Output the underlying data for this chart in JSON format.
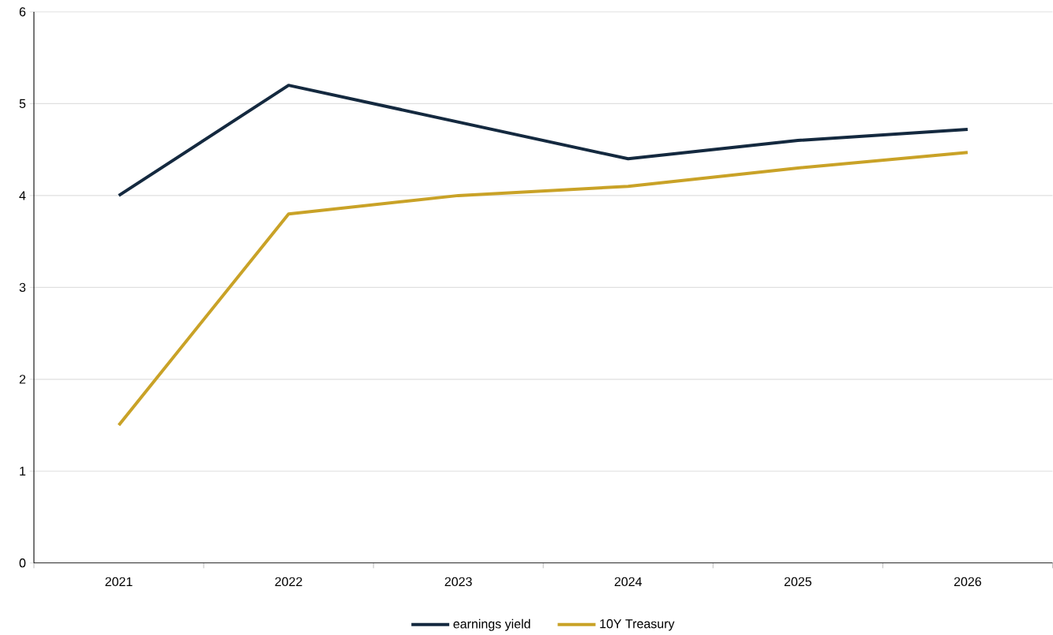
{
  "chart_data": {
    "type": "line",
    "categories": [
      "2021",
      "2022",
      "2023",
      "2024",
      "2025",
      "2026"
    ],
    "series": [
      {
        "name": "earnings yield",
        "color": "#14293f",
        "values": [
          4.0,
          5.2,
          4.8,
          4.4,
          4.6,
          4.72
        ]
      },
      {
        "name": "10Y Treasury",
        "color": "#c9a227",
        "values": [
          1.5,
          3.8,
          4.0,
          4.1,
          4.3,
          4.47
        ]
      }
    ],
    "ylim": [
      0,
      6
    ],
    "yticks": [
      0,
      1,
      2,
      3,
      4,
      5,
      6
    ],
    "grid": "y",
    "legend": "bottom",
    "marker": "none",
    "line_style": "solid"
  }
}
